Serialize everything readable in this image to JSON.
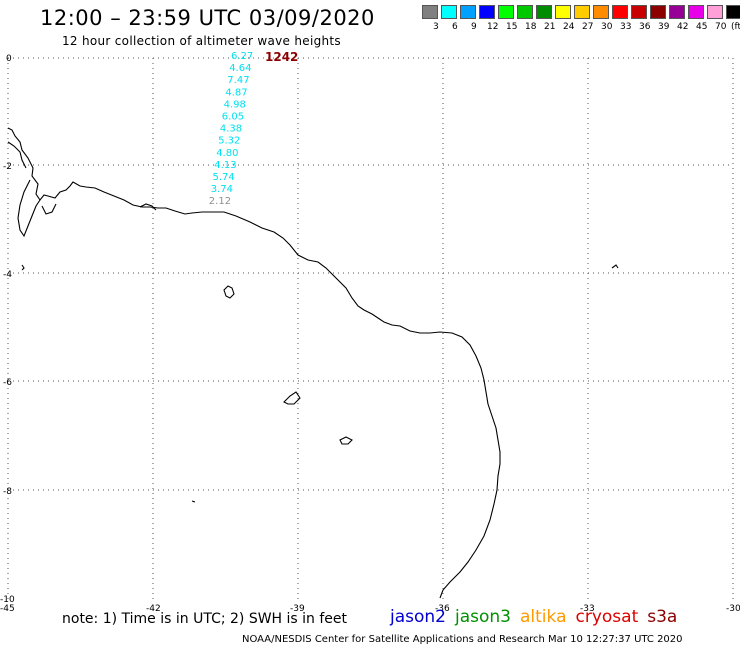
{
  "header": {
    "title": "12:00 – 23:59 UTC 03/09/2020",
    "subtitle": "12 hour collection of altimeter wave heights"
  },
  "legend": {
    "colors": [
      "#808080",
      "#00ffff",
      "#00a0ff",
      "#0000ff",
      "#00ff00",
      "#00c800",
      "#008c00",
      "#ffff00",
      "#ffcc00",
      "#ff8c00",
      "#ff0000",
      "#c80000",
      "#8c0000",
      "#960096",
      "#e800e8",
      "#ffa0d8",
      "#000000"
    ],
    "labels": [
      "3",
      "6",
      "9",
      "12",
      "15",
      "18",
      "21",
      "24",
      "27",
      "30",
      "33",
      "36",
      "39",
      "42",
      "45",
      "70",
      "(ft)"
    ]
  },
  "map": {
    "x_ticks": [
      "-45",
      "-42",
      "-39",
      "-36",
      "-33",
      "-30"
    ],
    "y_ticks": [
      "0",
      "-2",
      "-4",
      "-6",
      "-8",
      "-10"
    ],
    "pass_time": "1242",
    "pass_time_color": "#8c0000",
    "wave_heights": [
      "6.27",
      "4.64",
      "7.47",
      "4.87",
      "4.98",
      "6.05",
      "4.38",
      "5.32",
      "4.80",
      "4.13",
      "5.74",
      "3.74",
      "2.12"
    ],
    "wave_colors": [
      "#00e0f0",
      "#00e0f0",
      "#00e0f0",
      "#00e0f0",
      "#00e0f0",
      "#00e0f0",
      "#00e0f0",
      "#00e0f0",
      "#00e0f0",
      "#00e0f0",
      "#00e0f0",
      "#00e0f0",
      "#909090"
    ]
  },
  "footer": {
    "note": "note:  1) Time is in UTC;  2) SWH is in feet",
    "satellites": [
      {
        "name": "jason2",
        "color": "#0000d0"
      },
      {
        "name": "jason3",
        "color": "#009000"
      },
      {
        "name": "altika",
        "color": "#ff9900"
      },
      {
        "name": "cryosat",
        "color": "#dd0000"
      },
      {
        "name": "s3a",
        "color": "#8b0000"
      }
    ],
    "credit": "NOAA/NESDIS Center for Satellite Applications and Research    Mar 10 12:27:37 UTC 2020"
  }
}
